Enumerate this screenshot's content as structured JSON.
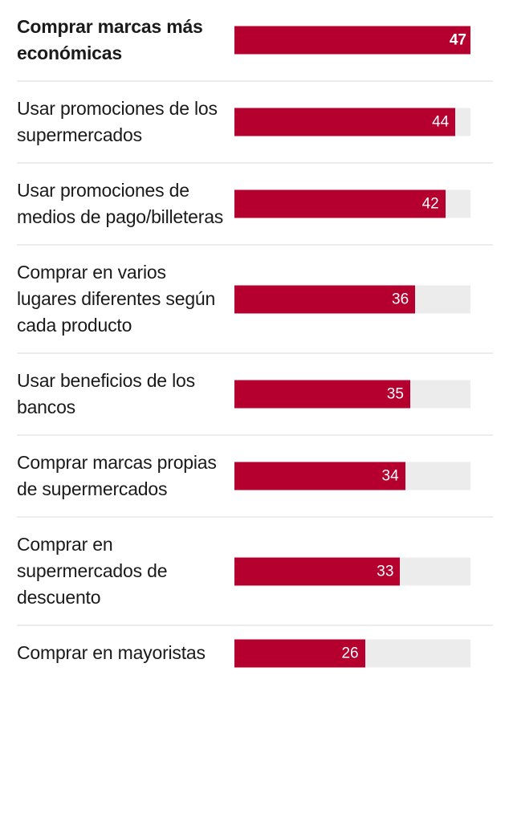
{
  "chart_data": {
    "type": "bar",
    "orientation": "horizontal",
    "title": "",
    "xlabel": "",
    "ylabel": "",
    "xlim": [
      0,
      47
    ],
    "grid": false,
    "categories": [
      "Comprar marcas más económicas",
      "Usar promociones de los supermercados",
      "Usar promociones de medios de pago/billeteras",
      "Comprar en varios lugares diferentes según cada producto",
      "Usar beneficios de los bancos",
      "Comprar marcas propias de supermercados",
      "Comprar en supermercados de descuento",
      "Comprar en mayoristas"
    ],
    "values": [
      47,
      44,
      42,
      36,
      35,
      34,
      33,
      26
    ],
    "data_labels": [
      "47",
      "44",
      "42",
      "36",
      "35",
      "34",
      "33",
      "26"
    ],
    "highlighted_index": 0
  },
  "colors": {
    "bar": "#b5002f",
    "track": "#ececec",
    "divider": "#ececec",
    "label_text": "#1a1a1a",
    "value_text": "#ffffff"
  }
}
